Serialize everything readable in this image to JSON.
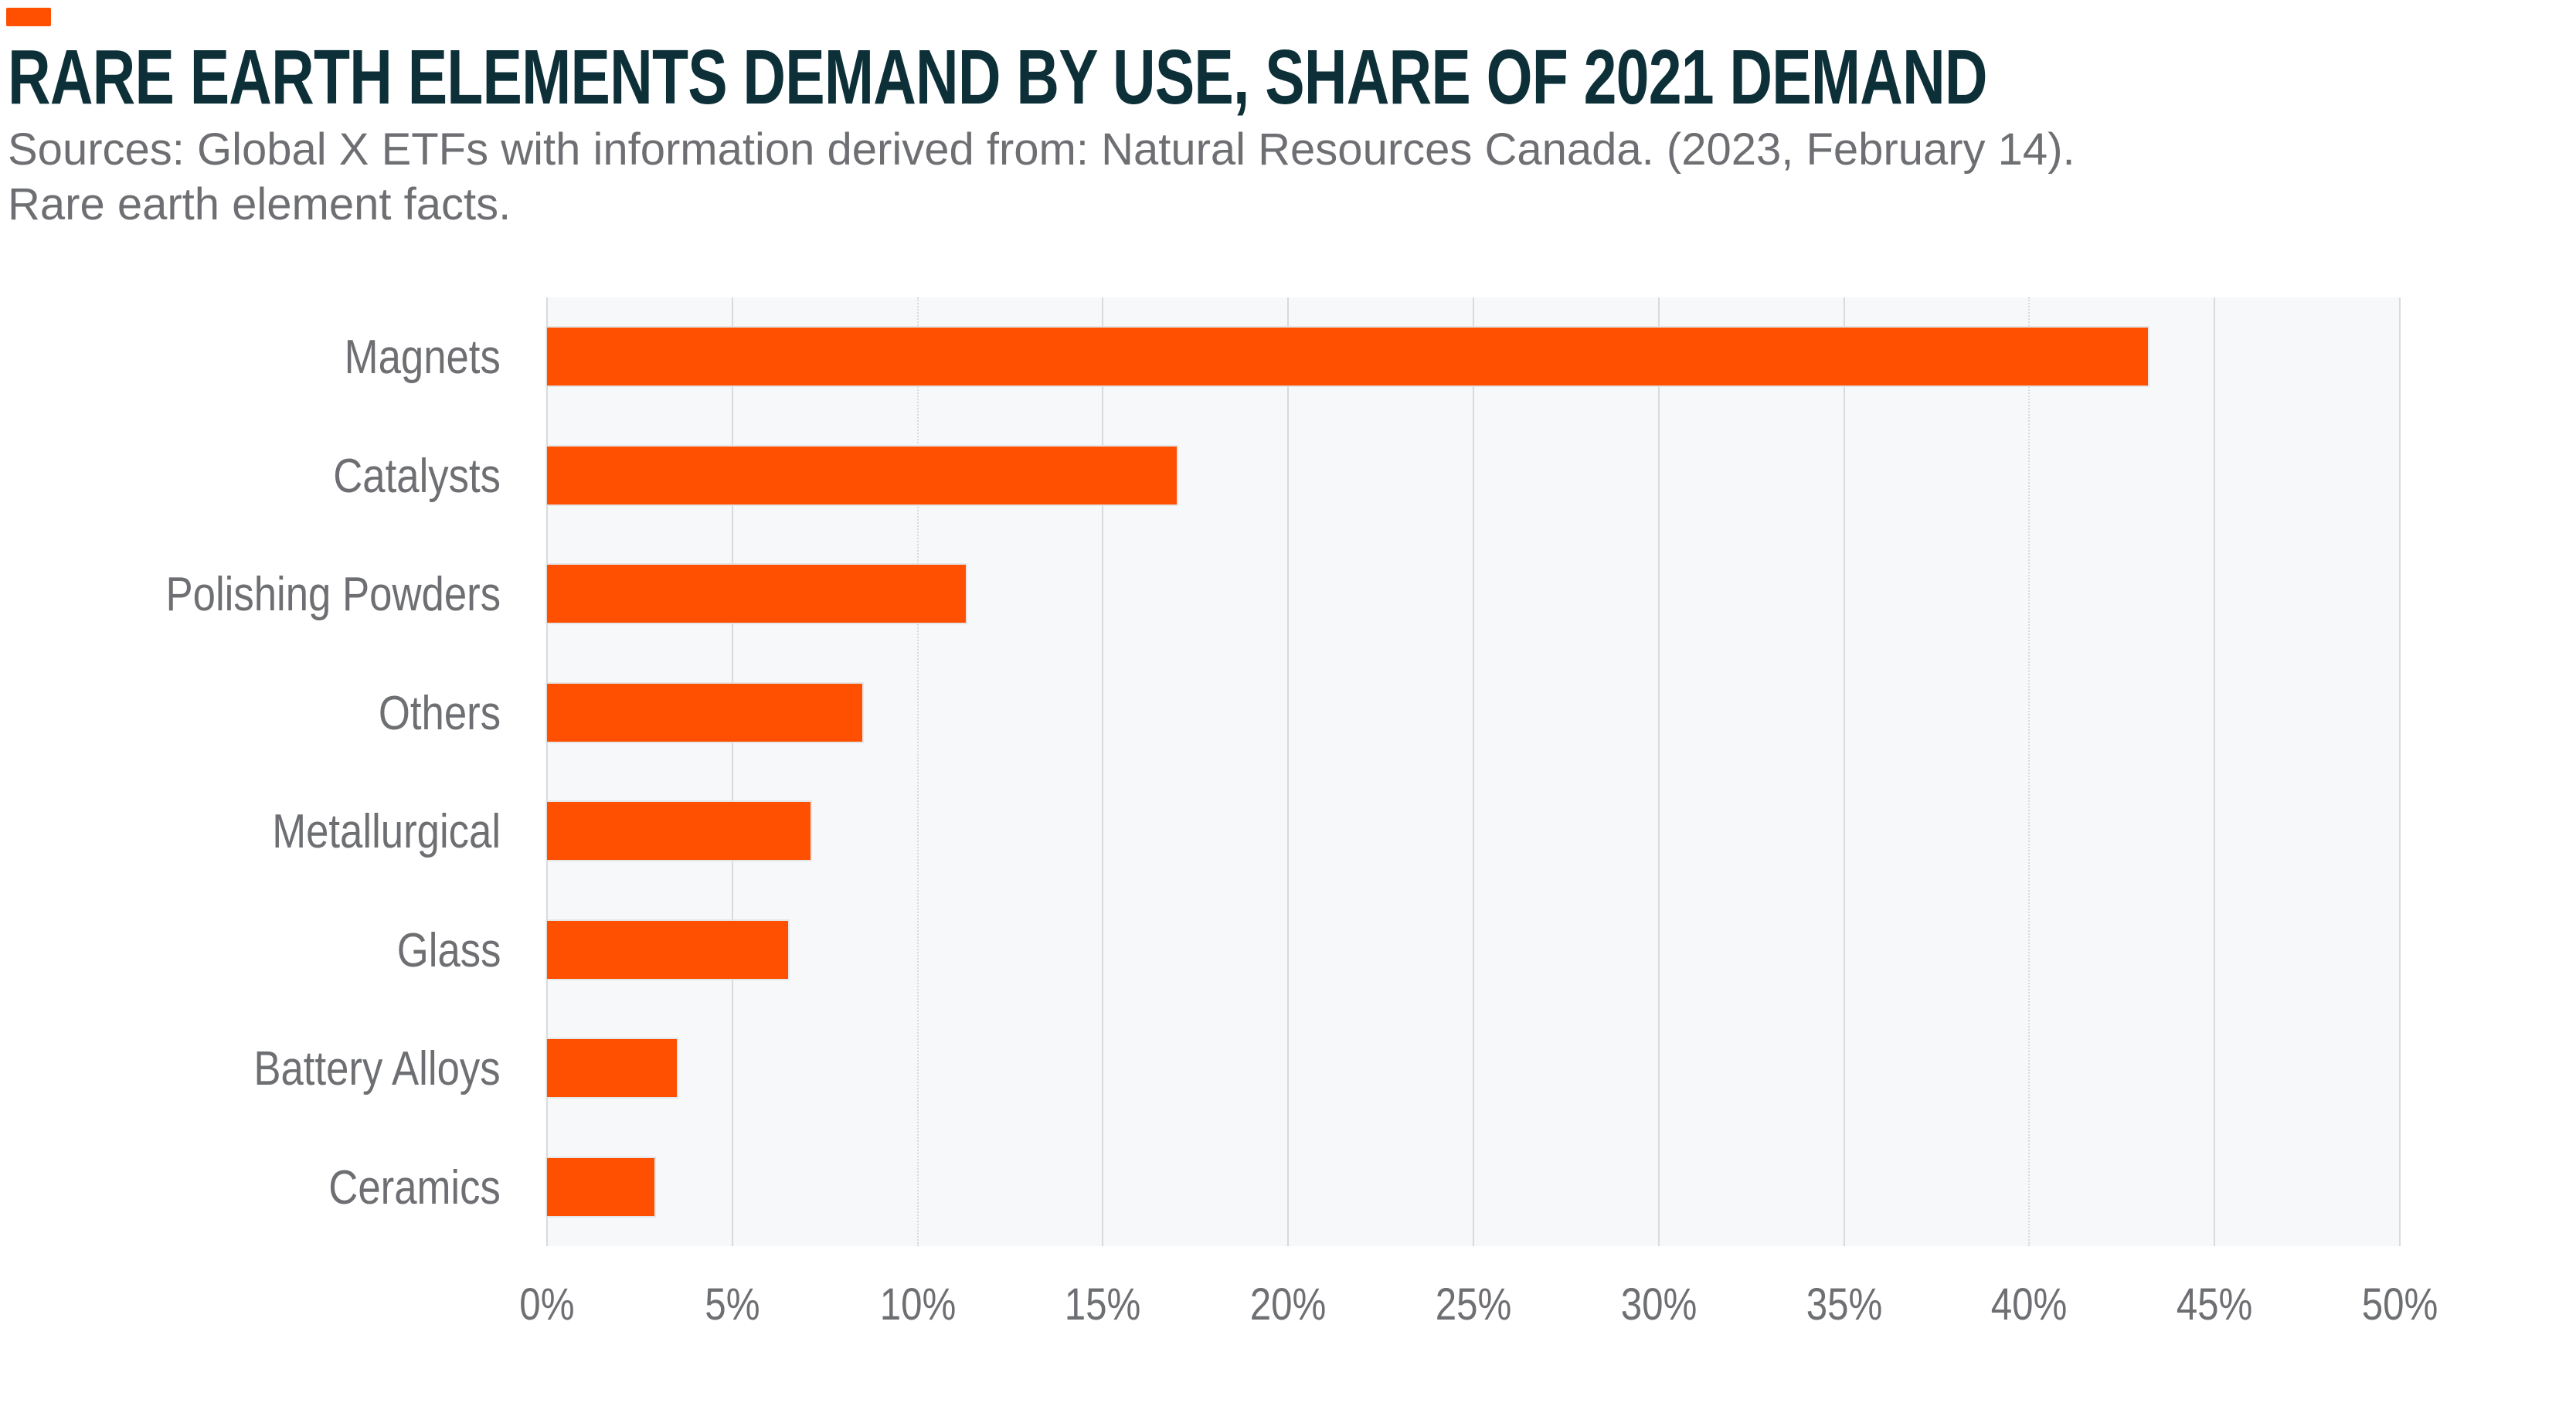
{
  "header": {
    "title": "RARE EARTH ELEMENTS DEMAND BY USE, SHARE OF 2021 DEMAND",
    "source_line1": "Sources: Global X ETFs with information derived from: Natural Resources Canada. (2023, February 14).",
    "source_line2": "Rare earth element facts."
  },
  "colors": {
    "accent_orange": "#FE5000",
    "title_text": "#0D3038",
    "muted_text": "#6E6F72",
    "plot_background": "#F7F8F9",
    "gridline": "#D9DADB",
    "page_background": "#FFFFFF"
  },
  "chart_data": {
    "type": "bar",
    "orientation": "horizontal",
    "title": "RARE EARTH ELEMENTS DEMAND BY USE, SHARE OF 2021 DEMAND",
    "categories": [
      "Magnets",
      "Catalysts",
      "Polishing Powders",
      "Others",
      "Metallurgical",
      "Glass",
      "Battery Alloys",
      "Ceramics"
    ],
    "values": [
      43.2,
      17.0,
      11.3,
      8.5,
      7.1,
      6.5,
      3.5,
      2.9
    ],
    "value_unit": "percent of 2021 demand",
    "xlabel": "",
    "ylabel": "",
    "xlim": [
      0,
      50
    ],
    "x_tick_labels": [
      "0%",
      "5%",
      "10%",
      "15%",
      "20%",
      "25%",
      "30%",
      "35%",
      "40%",
      "45%",
      "50%"
    ],
    "x_gridline_styles": [
      "solid",
      "solid",
      "dotted",
      "solid",
      "solid",
      "solid",
      "solid",
      "solid",
      "dotted",
      "solid",
      "solid"
    ],
    "bar_color": "#FE5000",
    "grid": "vertical",
    "legend": "none"
  }
}
